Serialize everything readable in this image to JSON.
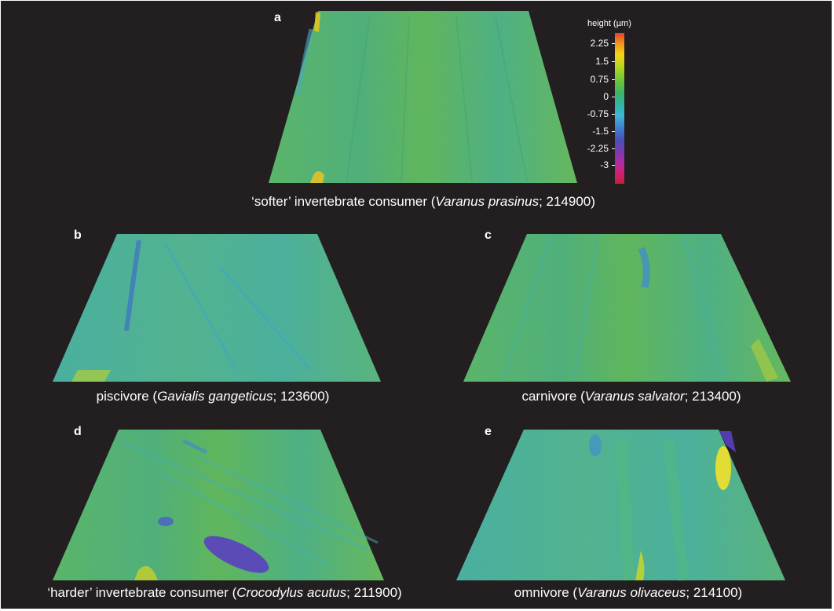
{
  "colors": {
    "background": "#231f20",
    "text": "#ffffff"
  },
  "colorbar": {
    "title": "height (µm)",
    "ticks": [
      "2.25",
      "1.5",
      "0.75",
      "0",
      "-0.75",
      "-1.5",
      "-2.25",
      "-3"
    ]
  },
  "panels": [
    {
      "letter": "a",
      "caption_pre": "‘softer’ invertebrate consumer (",
      "species": "Varanus prasinus",
      "caption_post": "; 214900)"
    },
    {
      "letter": "b",
      "caption_pre": "piscivore (",
      "species": "Gavialis gangeticus",
      "caption_post": "; 123600)"
    },
    {
      "letter": "c",
      "caption_pre": "carnivore (",
      "species": "Varanus salvator",
      "caption_post": "; 213400)"
    },
    {
      "letter": "d",
      "caption_pre": "‘harder’ invertebrate consumer (",
      "species": "Crocodylus acutus",
      "caption_post": "; 211900)"
    },
    {
      "letter": "e",
      "caption_pre": "omnivore (",
      "species": "Varanus olivaceus",
      "caption_post": "; 214100)"
    }
  ]
}
